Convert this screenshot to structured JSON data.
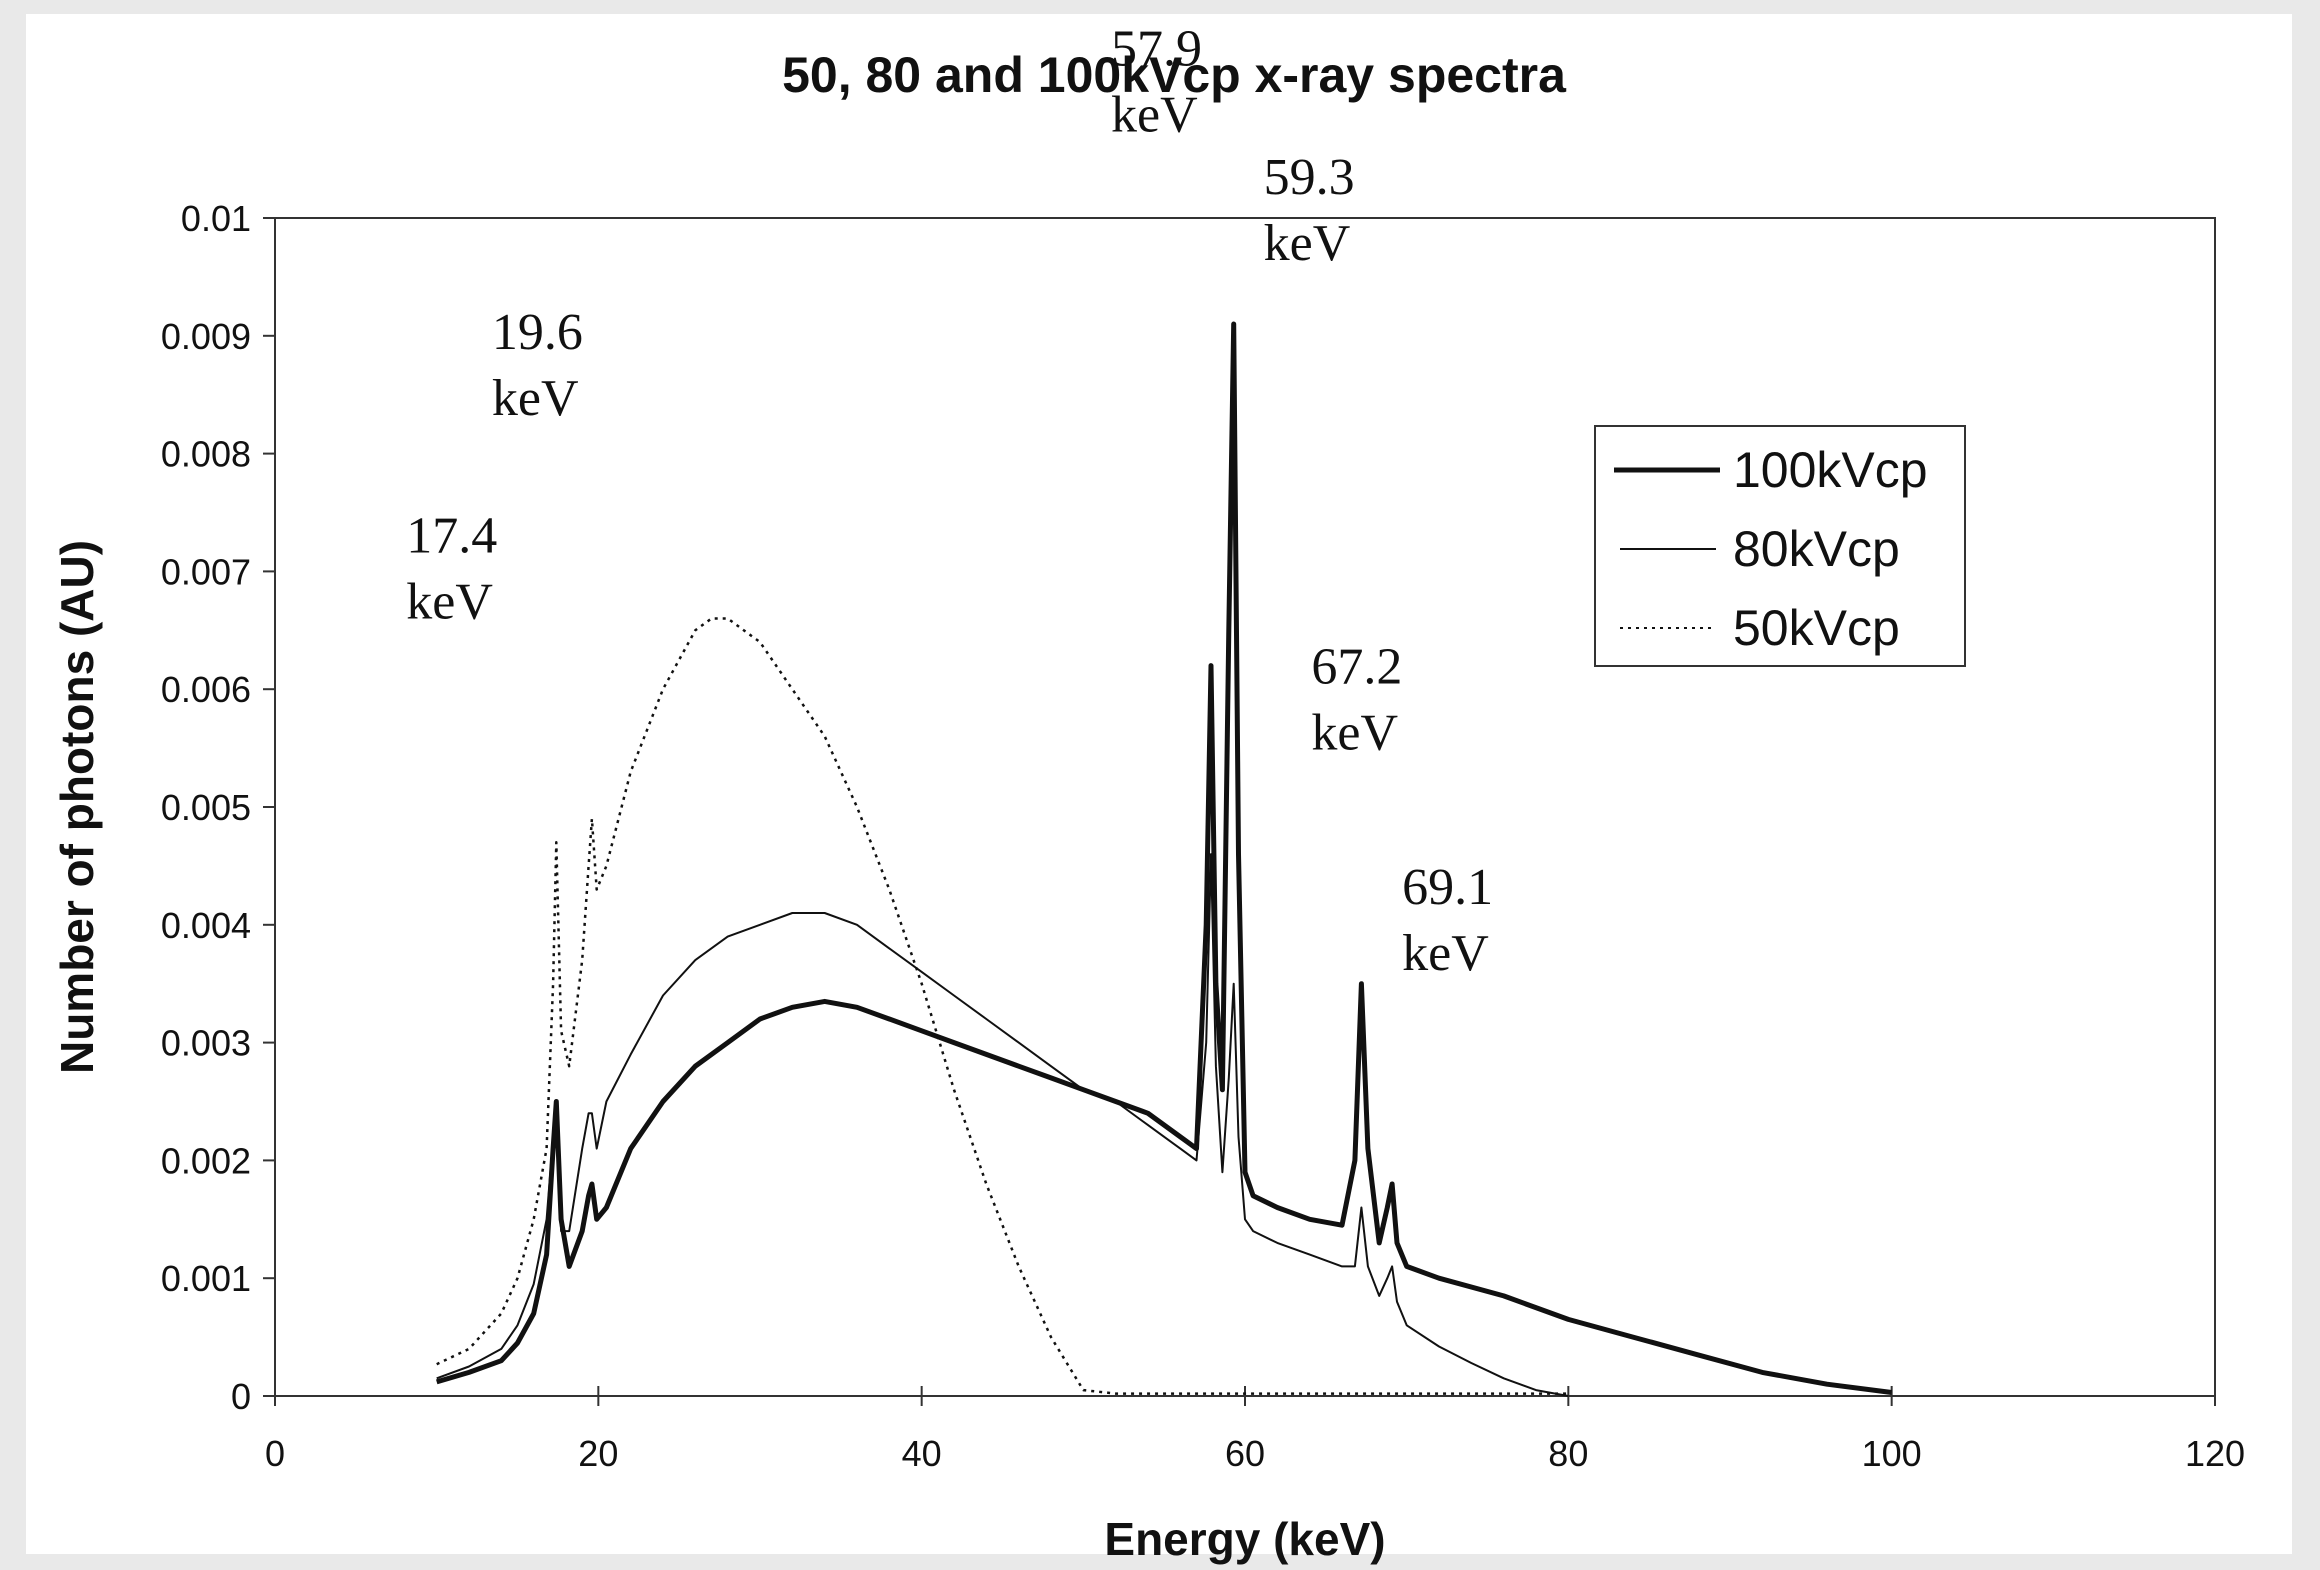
{
  "chart_data": {
    "type": "line",
    "title": "50, 80 and 100kVcp x-ray spectra",
    "xlabel": "Energy (keV)",
    "ylabel": "Number of photons (AU)",
    "xlim": [
      0,
      120
    ],
    "ylim": [
      0,
      0.01
    ],
    "x_ticks": [
      "0",
      "20",
      "40",
      "60",
      "80",
      "100",
      "120"
    ],
    "y_ticks": [
      "0",
      "0.001",
      "0.002",
      "0.003",
      "0.004",
      "0.005",
      "0.006",
      "0.007",
      "0.008",
      "0.009",
      "0.01"
    ],
    "grid": false,
    "legend_position": "top-right",
    "series": [
      {
        "name": "100kVcp",
        "style": "thick-solid",
        "color": "#111111",
        "x": [
          10,
          12,
          14,
          15,
          16,
          16.8,
          17.2,
          17.4,
          17.7,
          18.2,
          19,
          19.4,
          19.6,
          19.9,
          20.5,
          22,
          24,
          26,
          28,
          30,
          32,
          34,
          36,
          38,
          40,
          42,
          44,
          46,
          48,
          50,
          52,
          54,
          56,
          57,
          57.6,
          57.9,
          58.2,
          58.6,
          59.0,
          59.3,
          59.6,
          60,
          60.5,
          62,
          64,
          66,
          66.8,
          67.2,
          67.6,
          68.3,
          68.8,
          69.1,
          69.4,
          70,
          72,
          76,
          80,
          84,
          88,
          92,
          96,
          100
        ],
        "values": [
          0.00012,
          0.0002,
          0.0003,
          0.00045,
          0.0007,
          0.0012,
          0.0021,
          0.0025,
          0.0015,
          0.0011,
          0.0014,
          0.0017,
          0.0018,
          0.0015,
          0.0016,
          0.0021,
          0.0025,
          0.0028,
          0.003,
          0.0032,
          0.0033,
          0.00335,
          0.0033,
          0.0032,
          0.0031,
          0.003,
          0.0029,
          0.0028,
          0.0027,
          0.0026,
          0.0025,
          0.0024,
          0.0022,
          0.0021,
          0.004,
          0.0062,
          0.0035,
          0.0026,
          0.0065,
          0.0091,
          0.0046,
          0.0019,
          0.0017,
          0.0016,
          0.0015,
          0.00145,
          0.002,
          0.0035,
          0.0021,
          0.0013,
          0.0016,
          0.0018,
          0.0013,
          0.0011,
          0.001,
          0.00085,
          0.00065,
          0.0005,
          0.00035,
          0.0002,
          0.0001,
          3e-05
        ]
      },
      {
        "name": "80kVcp",
        "style": "thin-solid",
        "color": "#111111",
        "x": [
          10,
          12,
          14,
          15,
          16,
          16.8,
          17.2,
          17.4,
          17.7,
          18.2,
          19,
          19.4,
          19.6,
          19.9,
          20.5,
          22,
          24,
          26,
          28,
          30,
          32,
          34,
          36,
          38,
          40,
          42,
          44,
          46,
          48,
          50,
          52,
          54,
          56,
          57,
          57.6,
          57.9,
          58.2,
          58.6,
          59.0,
          59.3,
          59.6,
          60,
          60.5,
          62,
          64,
          66,
          66.8,
          67.2,
          67.6,
          68.3,
          68.8,
          69.1,
          69.4,
          70,
          72,
          74,
          76,
          78,
          80
        ],
        "values": [
          0.00015,
          0.00025,
          0.0004,
          0.0006,
          0.00095,
          0.0015,
          0.0022,
          0.0024,
          0.0014,
          0.0014,
          0.0021,
          0.0024,
          0.0024,
          0.0021,
          0.0025,
          0.0029,
          0.0034,
          0.0037,
          0.0039,
          0.004,
          0.0041,
          0.0041,
          0.004,
          0.0038,
          0.0036,
          0.0034,
          0.0032,
          0.003,
          0.0028,
          0.0026,
          0.0025,
          0.0023,
          0.0021,
          0.002,
          0.003,
          0.0046,
          0.0028,
          0.0019,
          0.0027,
          0.0035,
          0.0022,
          0.0015,
          0.0014,
          0.0013,
          0.0012,
          0.0011,
          0.0011,
          0.0016,
          0.0011,
          0.00085,
          0.001,
          0.0011,
          0.0008,
          0.0006,
          0.00042,
          0.00028,
          0.00015,
          5e-05,
          0.0
        ]
      },
      {
        "name": "50kVcp",
        "style": "dotted",
        "color": "#111111",
        "x": [
          10,
          12,
          14,
          15,
          16,
          16.8,
          17.2,
          17.4,
          17.7,
          18.2,
          19,
          19.4,
          19.6,
          19.9,
          20.5,
          22,
          24,
          26,
          27,
          28,
          30,
          32,
          34,
          36,
          38,
          40,
          42,
          44,
          46,
          48,
          50,
          52,
          56,
          60,
          64,
          68,
          72,
          76,
          80
        ],
        "values": [
          0.00027,
          0.0004,
          0.0007,
          0.001,
          0.0015,
          0.0021,
          0.0035,
          0.0047,
          0.0031,
          0.0028,
          0.0037,
          0.0045,
          0.0049,
          0.0043,
          0.0045,
          0.0053,
          0.006,
          0.0065,
          0.0066,
          0.0066,
          0.0064,
          0.006,
          0.0056,
          0.005,
          0.0043,
          0.0035,
          0.0026,
          0.0018,
          0.0011,
          0.0005,
          5e-05,
          2e-05,
          2e-05,
          2e-05,
          2e-05,
          2e-05,
          2e-05,
          2e-05,
          2e-05
        ]
      }
    ],
    "annotations": [
      {
        "line1": "17.4",
        "line2": "keV",
        "x": 17.4
      },
      {
        "line1": "19.6",
        "line2": "keV",
        "x": 19.6
      },
      {
        "line1": "57.9",
        "line2": "keV",
        "x": 57.9
      },
      {
        "line1": "59.3",
        "line2": "keV",
        "x": 59.3
      },
      {
        "line1": "67.2",
        "line2": "keV",
        "x": 67.2
      },
      {
        "line1": "69.1",
        "line2": "keV",
        "x": 69.1
      }
    ]
  }
}
